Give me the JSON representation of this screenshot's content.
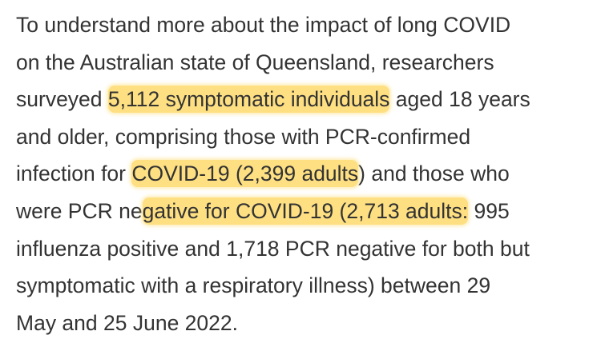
{
  "paragraph": {
    "lines": [
      {
        "segments": [
          {
            "text": "To understand more about the impact of long COVID",
            "highlight": false
          }
        ]
      },
      {
        "segments": [
          {
            "text": "on the Australian state of Queensland, researchers",
            "highlight": false
          }
        ]
      },
      {
        "segments": [
          {
            "text": "surveyed ",
            "highlight": false
          },
          {
            "text": "5,112 symptomatic individuals",
            "highlight": true
          },
          {
            "text": " aged 18 years",
            "highlight": false
          }
        ]
      },
      {
        "segments": [
          {
            "text": "and older, comprising those with PCR-confirmed",
            "highlight": false
          }
        ]
      },
      {
        "segments": [
          {
            "text": "infection for ",
            "highlight": false
          },
          {
            "text": "COVID-19 (2,399 adults",
            "highlight": true
          },
          {
            "text": ") and those who",
            "highlight": false
          }
        ]
      },
      {
        "segments": [
          {
            "text": "were PCR ne",
            "highlight": false
          },
          {
            "text": "gative for COVID-19 (2,713 adults:",
            "highlight": true
          },
          {
            "text": " 995",
            "highlight": false
          }
        ]
      },
      {
        "segments": [
          {
            "text": "influenza positive and 1,718 PCR negative for both but",
            "highlight": false
          }
        ]
      },
      {
        "segments": [
          {
            "text": "symptomatic with a respiratory illness) between 29",
            "highlight": false
          }
        ]
      },
      {
        "segments": [
          {
            "text": "May and 25 June 2022.",
            "highlight": false
          }
        ]
      }
    ]
  }
}
